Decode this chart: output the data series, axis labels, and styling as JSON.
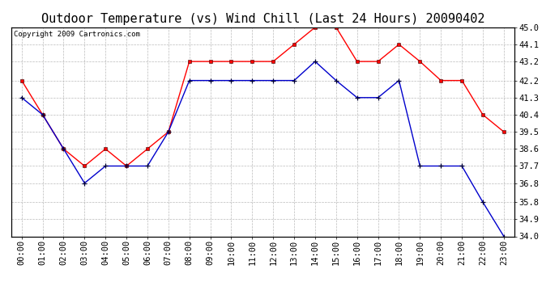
{
  "title": "Outdoor Temperature (vs) Wind Chill (Last 24 Hours) 20090402",
  "copyright": "Copyright 2009 Cartronics.com",
  "x_labels": [
    "00:00",
    "01:00",
    "02:00",
    "03:00",
    "04:00",
    "05:00",
    "06:00",
    "07:00",
    "08:00",
    "09:00",
    "10:00",
    "11:00",
    "12:00",
    "13:00",
    "14:00",
    "15:00",
    "16:00",
    "17:00",
    "18:00",
    "19:00",
    "20:00",
    "21:00",
    "22:00",
    "23:00"
  ],
  "red_data": [
    42.2,
    40.4,
    38.6,
    37.7,
    38.6,
    37.7,
    38.6,
    39.5,
    43.2,
    43.2,
    43.2,
    43.2,
    43.2,
    44.1,
    45.0,
    45.0,
    43.2,
    43.2,
    44.1,
    43.2,
    42.2,
    42.2,
    40.4,
    39.5
  ],
  "blue_data": [
    41.3,
    40.4,
    38.6,
    36.8,
    37.7,
    37.7,
    37.7,
    39.5,
    42.2,
    42.2,
    42.2,
    42.2,
    42.2,
    42.2,
    43.2,
    42.2,
    41.3,
    41.3,
    42.2,
    37.7,
    37.7,
    37.7,
    35.8,
    34.0
  ],
  "ylim_min": 34.0,
  "ylim_max": 45.0,
  "yticks": [
    34.0,
    34.9,
    35.8,
    36.8,
    37.7,
    38.6,
    39.5,
    40.4,
    41.3,
    42.2,
    43.2,
    44.1,
    45.0
  ],
  "red_color": "#ff0000",
  "blue_color": "#0000cc",
  "grid_color": "#bbbbbb",
  "plot_bg_color": "#ffffff",
  "fig_bg_color": "#ffffff",
  "title_fontsize": 11,
  "copyright_fontsize": 6.5,
  "axis_fontsize": 7.5
}
